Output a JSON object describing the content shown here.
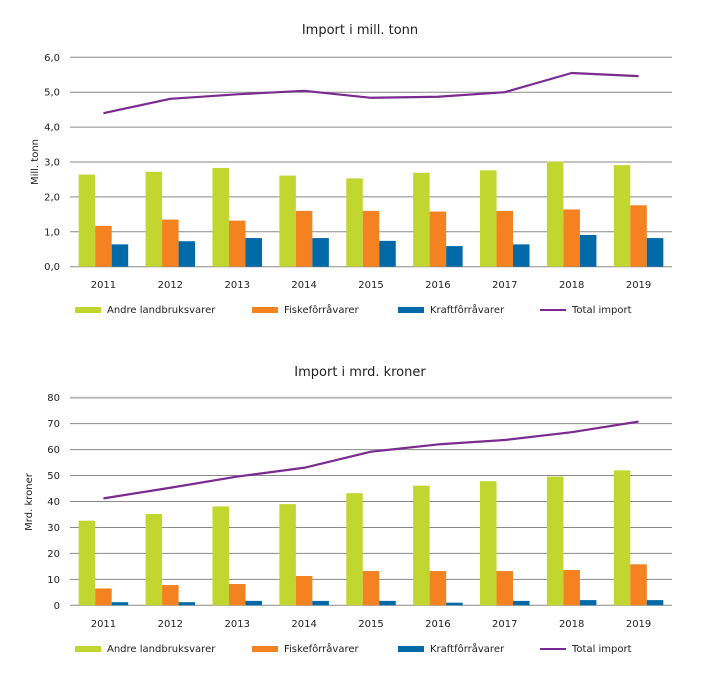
{
  "chart_data": [
    {
      "type": "bar",
      "title": "Import i mill. tonn",
      "xlabel": "",
      "ylabel": "Mill. tonn",
      "ylim": [
        0,
        6
      ],
      "yticks": [
        "0,0",
        "1,0",
        "2,0",
        "3,0",
        "4,0",
        "5,0",
        "6,0"
      ],
      "ytick_values": [
        0,
        1,
        2,
        3,
        4,
        5,
        6
      ],
      "grid": true,
      "legend_position": "bottom",
      "categories": [
        "2011",
        "2012",
        "2013",
        "2014",
        "2015",
        "2016",
        "2017",
        "2018",
        "2019"
      ],
      "series": [
        {
          "name": "Andre landbruksvarer",
          "kind": "bar",
          "color": "#c1d62e",
          "values": [
            2.64,
            2.72,
            2.83,
            2.61,
            2.53,
            2.69,
            2.76,
            3.01,
            2.91
          ]
        },
        {
          "name": "Fiskefôrråvarer",
          "kind": "bar",
          "color": "#f58220",
          "values": [
            1.17,
            1.35,
            1.32,
            1.6,
            1.6,
            1.58,
            1.6,
            1.64,
            1.76
          ]
        },
        {
          "name": "Kraftfôrråvarer",
          "kind": "bar",
          "color": "#0069a8",
          "values": [
            0.64,
            0.73,
            0.82,
            0.82,
            0.74,
            0.59,
            0.64,
            0.91,
            0.82
          ]
        },
        {
          "name": "Total import",
          "kind": "line",
          "color": "#7b2a8f",
          "values": [
            4.4,
            4.81,
            4.94,
            5.04,
            4.84,
            4.87,
            5.0,
            5.55,
            5.46
          ]
        }
      ]
    },
    {
      "type": "bar",
      "title": "Import i mrd. kroner",
      "xlabel": "",
      "ylabel": "Mrd. kroner",
      "ylim": [
        0,
        80
      ],
      "yticks": [
        "0",
        "10",
        "20",
        "30",
        "40",
        "50",
        "60",
        "70",
        "80"
      ],
      "ytick_values": [
        0,
        10,
        20,
        30,
        40,
        50,
        60,
        70,
        80
      ],
      "grid": true,
      "legend_position": "bottom",
      "categories": [
        "2011",
        "2012",
        "2013",
        "2014",
        "2015",
        "2016",
        "2017",
        "2018",
        "2019"
      ],
      "series": [
        {
          "name": "Andre landbruksvarer",
          "kind": "bar",
          "color": "#c1d62e",
          "values": [
            32.6,
            35.2,
            38.1,
            39.0,
            43.2,
            46.1,
            47.8,
            49.6,
            52.0
          ]
        },
        {
          "name": "Fiskefôrråvarer",
          "kind": "bar",
          "color": "#f58220",
          "values": [
            6.5,
            7.8,
            8.2,
            11.3,
            13.2,
            13.2,
            13.2,
            13.6,
            15.8
          ]
        },
        {
          "name": "Kraftfôrråvarer",
          "kind": "bar",
          "color": "#0069a8",
          "values": [
            1.2,
            1.2,
            1.7,
            1.7,
            1.7,
            1.0,
            1.7,
            2.0,
            2.0
          ]
        },
        {
          "name": "Total import",
          "kind": "line",
          "color": "#7b2a8f",
          "values": [
            41.2,
            45.3,
            49.6,
            53.0,
            59.2,
            62.0,
            63.7,
            66.7,
            70.8
          ]
        }
      ]
    }
  ]
}
